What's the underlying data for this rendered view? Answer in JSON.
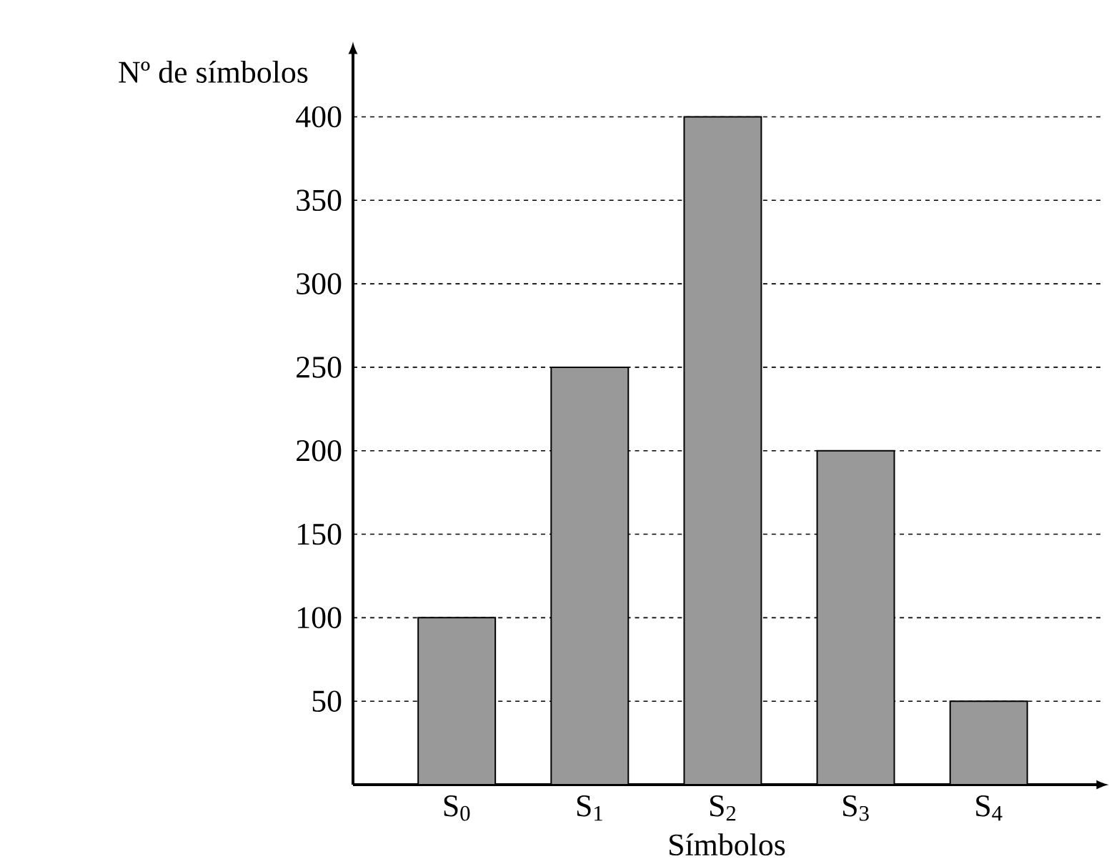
{
  "chart_data": {
    "type": "bar",
    "categories": [
      "S$_{0}$",
      "S$_{1}$",
      "S$_{2}$",
      "S$_{3}$",
      "S$_{4}$"
    ],
    "values": [
      100,
      250,
      400,
      200,
      50
    ],
    "color": "#999999",
    "xlabel": "Símbolos",
    "ylabel": "Nº de símbolos",
    "ylim": [
      0,
      440
    ],
    "yticks": [
      50,
      100,
      150,
      200,
      250,
      300,
      350,
      400
    ],
    "grid": "y"
  }
}
